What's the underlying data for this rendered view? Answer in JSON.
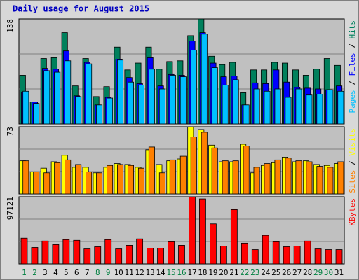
{
  "chart_data": [
    {
      "type": "bar",
      "title": "Daily usage for August 2015",
      "ylim": [
        0,
        138
      ],
      "yticks": [
        138
      ],
      "grid_divisions": 3,
      "legend_separator": " / ",
      "series": [
        {
          "name": "Hits",
          "color": "#00805c",
          "values": [
            64,
            29,
            86,
            87,
            120,
            50,
            86,
            36,
            49,
            101,
            71,
            80,
            101,
            72,
            82,
            83,
            116,
            138,
            89,
            78,
            81,
            41,
            71,
            71,
            81,
            80,
            71,
            64,
            72,
            86,
            77
          ]
        },
        {
          "name": "Files",
          "color": "#0000ff",
          "values": [
            42,
            29,
            73,
            72,
            96,
            37,
            81,
            25,
            35,
            85,
            61,
            53,
            87,
            50,
            65,
            64,
            109,
            120,
            80,
            62,
            63,
            25,
            54,
            53,
            71,
            55,
            48,
            47,
            46,
            45,
            50
          ]
        },
        {
          "name": "Pages",
          "color": "#00c0ff",
          "values": [
            43,
            27,
            70,
            68,
            83,
            36,
            79,
            25,
            34,
            84,
            55,
            51,
            72,
            46,
            64,
            62,
            97,
            118,
            74,
            51,
            58,
            25,
            46,
            43,
            46,
            35,
            46,
            38,
            39,
            45,
            43
          ]
        }
      ]
    },
    {
      "type": "bar",
      "ylim": [
        0,
        73
      ],
      "yticks": [
        73
      ],
      "grid_divisions": 3,
      "legend_separator": " / ",
      "series": [
        {
          "name": "Visits",
          "color": "#ffff00",
          "values": [
            36,
            24,
            28,
            35,
            42,
            29,
            29,
            23,
            29,
            33,
            32,
            29,
            48,
            32,
            36,
            38,
            73,
            70,
            53,
            35,
            35,
            54,
            23,
            31,
            34,
            40,
            35,
            36,
            32,
            31,
            33
          ]
        },
        {
          "name": "Sites",
          "color": "#ff8000",
          "values": [
            36,
            24,
            23,
            34,
            37,
            32,
            24,
            23,
            31,
            32,
            31,
            28,
            51,
            23,
            37,
            41,
            62,
            67,
            50,
            36,
            36,
            52,
            29,
            33,
            37,
            39,
            36,
            35,
            30,
            29,
            35
          ]
        }
      ]
    },
    {
      "type": "bar",
      "ylim": [
        0,
        97121
      ],
      "yticks": [
        97121
      ],
      "grid_divisions": 3,
      "categories": [
        "1",
        "2",
        "3",
        "4",
        "5",
        "6",
        "7",
        "8",
        "9",
        "10",
        "11",
        "12",
        "13",
        "14",
        "15",
        "16",
        "17",
        "18",
        "19",
        "20",
        "21",
        "22",
        "23",
        "24",
        "25",
        "26",
        "27",
        "28",
        "29",
        "30",
        "31"
      ],
      "label_colors": [
        "#008040",
        "#008040",
        "#000000",
        "#000000",
        "#000000",
        "#000000",
        "#000000",
        "#008040",
        "#008040",
        "#000000",
        "#000000",
        "#000000",
        "#000000",
        "#000000",
        "#008040",
        "#008040",
        "#000000",
        "#000000",
        "#000000",
        "#000000",
        "#000000",
        "#008040",
        "#008040",
        "#000000",
        "#000000",
        "#000000",
        "#000000",
        "#000000",
        "#008040",
        "#008040",
        "#000000"
      ],
      "series": [
        {
          "name": "KBytes",
          "color": "#ff0000",
          "values": [
            37200,
            23800,
            33100,
            27900,
            35100,
            34100,
            21700,
            24800,
            35100,
            21700,
            26900,
            36200,
            22700,
            22700,
            32000,
            26900,
            97121,
            94000,
            57900,
            25800,
            78500,
            30000,
            20700,
            41300,
            32000,
            24800,
            25800,
            33100,
            21700,
            20700,
            20700
          ]
        }
      ]
    }
  ]
}
